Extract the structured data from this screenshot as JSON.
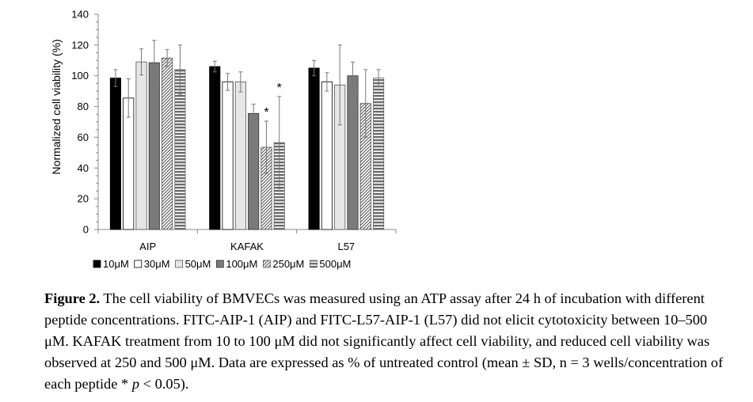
{
  "chart_data": {
    "type": "bar",
    "ylabel": "Normalized cell viability (%)",
    "xlabel": "",
    "ylim": [
      0,
      140
    ],
    "yticks": [
      0,
      20,
      40,
      60,
      80,
      100,
      120,
      140
    ],
    "categories": [
      "AIP",
      "KAFAK",
      "L57"
    ],
    "legend_position": "bottom",
    "series": [
      {
        "name": "10μM",
        "pattern": "solid-black",
        "values": [
          98.5,
          106,
          105
        ],
        "errors": [
          5.5,
          3.5,
          5
        ]
      },
      {
        "name": "30μM",
        "pattern": "white",
        "values": [
          85.5,
          96,
          96
        ],
        "errors": [
          12.5,
          5.5,
          6
        ]
      },
      {
        "name": "50μM",
        "pattern": "light-gray",
        "values": [
          109,
          96,
          94
        ],
        "errors": [
          8.5,
          6.5,
          26
        ]
      },
      {
        "name": "100μM",
        "pattern": "dark-gray",
        "values": [
          108.5,
          75.5,
          100
        ],
        "errors": [
          14.5,
          6,
          9
        ]
      },
      {
        "name": "250μM",
        "pattern": "diagonal-hatch",
        "values": [
          111.5,
          53.5,
          82
        ],
        "errors": [
          5.5,
          17,
          22
        ]
      },
      {
        "name": "500μM",
        "pattern": "horizontal-stripes",
        "values": [
          104,
          56.5,
          98.5
        ],
        "errors": [
          16,
          30,
          5.5
        ]
      }
    ],
    "annotations": [
      {
        "category": "KAFAK",
        "series": "250μM",
        "text": "*"
      },
      {
        "category": "KAFAK",
        "series": "500μM",
        "text": "*"
      }
    ]
  },
  "caption": {
    "label": "Figure 2.",
    "text": " The cell viability of BMVECs was measured using an ATP assay after 24 h of incubation with different peptide concentrations.  FITC-AIP-1 (AIP) and FITC-L57-AIP-1 (L57) did not elicit cytotoxicity between 10–500 μM. KAFAK treatment from 10 to 100 μM did not significantly affect cell viability, and reduced cell viability was observed at 250 and 500 μM. Data are expressed as % of untreated control (mean ± SD, n = 3 wells/concentration of each peptide * ",
    "p_symbol": "p",
    "text_end": " < 0.05)."
  }
}
